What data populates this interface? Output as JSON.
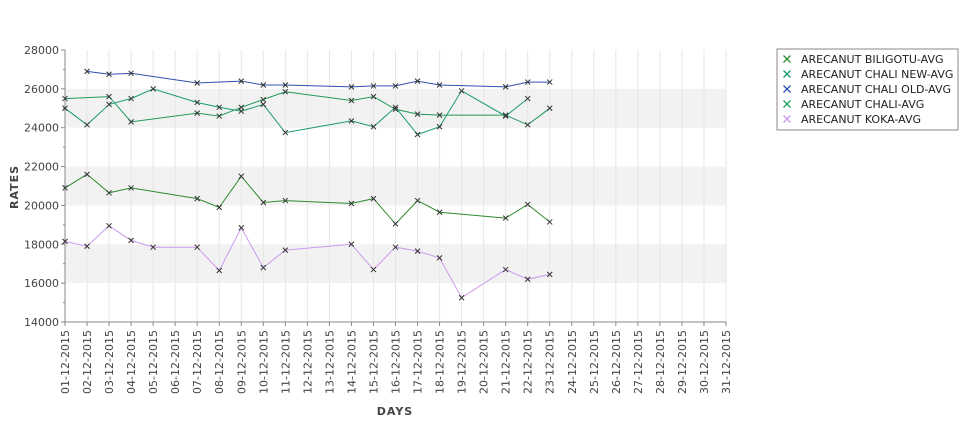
{
  "chart_data": {
    "type": "line",
    "title": "",
    "xlabel": "DAYS",
    "ylabel": "RATES",
    "ylim": [
      14000,
      28000
    ],
    "yticks": [
      14000,
      16000,
      18000,
      20000,
      22000,
      24000,
      26000,
      28000
    ],
    "grid": true,
    "legend_position": "top-right",
    "categories": [
      "01-12-2015",
      "02-12-2015",
      "03-12-2015",
      "04-12-2015",
      "05-12-2015",
      "06-12-2015",
      "07-12-2015",
      "08-12-2015",
      "09-12-2015",
      "10-12-2015",
      "11-12-2015",
      "12-12-2015",
      "13-12-2015",
      "14-12-2015",
      "15-12-2015",
      "16-12-2015",
      "17-12-2015",
      "18-12-2015",
      "19-12-2015",
      "20-12-2015",
      "21-12-2015",
      "22-12-2015",
      "23-12-2015",
      "24-12-2015",
      "25-12-2015",
      "26-12-2015",
      "27-12-2015",
      "28-12-2015",
      "29-12-2015",
      "30-12-2015",
      "31-12-2015"
    ],
    "series": [
      {
        "name": "ARECANUT BILIGOTU-AVG",
        "color": "#2e8b2e",
        "values": [
          20900,
          21600,
          20650,
          20900,
          null,
          null,
          20350,
          19900,
          21500,
          20150,
          20250,
          null,
          null,
          20100,
          20350,
          19050,
          20250,
          19650,
          null,
          null,
          19350,
          20050,
          19150,
          null,
          null,
          null,
          null,
          null,
          null,
          null,
          null
        ]
      },
      {
        "name": "ARECANUT CHALI NEW-AVG",
        "color": "#1a9a6e",
        "values": [
          25000,
          24150,
          25200,
          25500,
          26000,
          null,
          25300,
          25050,
          24850,
          25200,
          23750,
          null,
          null,
          24350,
          24050,
          25050,
          23650,
          24050,
          25900,
          null,
          24600,
          25500,
          null,
          null,
          null,
          null,
          null,
          null,
          null,
          null,
          null
        ]
      },
      {
        "name": "ARECANUT CHALI OLD-AVG",
        "color": "#3050b0",
        "values": [
          null,
          26900,
          26750,
          26800,
          null,
          null,
          26300,
          null,
          26400,
          26200,
          26200,
          null,
          null,
          26100,
          26150,
          26150,
          26400,
          26200,
          null,
          null,
          26100,
          26350,
          26350,
          null,
          null,
          null,
          null,
          null,
          null,
          null,
          null
        ]
      },
      {
        "name": "ARECANUT CHALI-AVG",
        "color": "#1f9a5a",
        "values": [
          25500,
          null,
          25600,
          24300,
          null,
          null,
          24750,
          24600,
          25050,
          25450,
          25850,
          null,
          null,
          25400,
          25600,
          24950,
          24700,
          24650,
          null,
          null,
          24650,
          24150,
          25000,
          null,
          null,
          null,
          null,
          null,
          null,
          null,
          null
        ]
      },
      {
        "name": "ARECANUT KOKA-AVG",
        "color": "#cc99ee",
        "values": [
          18150,
          17900,
          18950,
          18200,
          17850,
          null,
          17850,
          16650,
          18850,
          16800,
          17700,
          null,
          null,
          18000,
          16700,
          17850,
          17650,
          17300,
          15250,
          null,
          16700,
          16200,
          16450,
          null,
          null,
          null,
          null,
          null,
          null,
          null,
          null
        ]
      }
    ]
  }
}
